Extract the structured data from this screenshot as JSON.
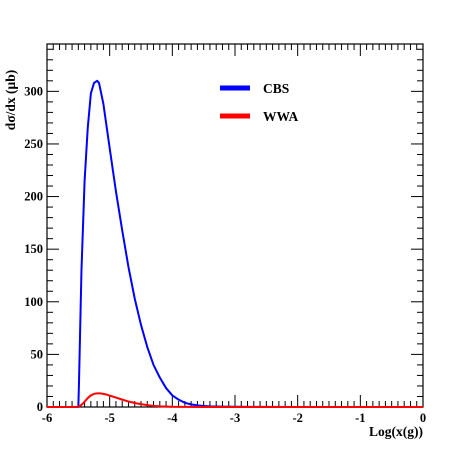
{
  "chart_data": {
    "type": "line",
    "xlabel": "Log(x(g))",
    "ylabel": "dσ/dx (μb)",
    "xlim": [
      -6,
      0
    ],
    "ylim": [
      0,
      345
    ],
    "x_ticks": [
      -6,
      -5,
      -4,
      -3,
      -2,
      -1,
      0
    ],
    "x_tick_labels": [
      "-6",
      "-5",
      "-4",
      "-3",
      "-2",
      "-1",
      "0"
    ],
    "y_ticks": [
      0,
      50,
      100,
      150,
      200,
      250,
      300
    ],
    "y_tick_labels": [
      "0",
      "50",
      "100",
      "150",
      "200",
      "250",
      "300"
    ],
    "legend": {
      "position": "top-right"
    },
    "series": [
      {
        "name": "CBS",
        "color": "#0000ff",
        "x": [
          -6.0,
          -5.8,
          -5.5,
          -5.49,
          -5.45,
          -5.4,
          -5.35,
          -5.3,
          -5.25,
          -5.2,
          -5.17,
          -5.1,
          -5.0,
          -4.9,
          -4.8,
          -4.7,
          -4.6,
          -4.5,
          -4.4,
          -4.3,
          -4.2,
          -4.1,
          -4.0,
          -3.9,
          -3.8,
          -3.7,
          -3.6,
          -3.5,
          -3.4,
          -3.2,
          -3.0,
          -2.5,
          -2.0,
          -1.0,
          0.0
        ],
        "y": [
          0,
          0,
          0,
          22,
          130,
          215,
          265,
          298,
          308,
          310,
          308,
          288,
          246,
          205,
          168,
          133,
          103,
          78,
          57,
          40,
          28,
          18,
          11,
          7,
          4,
          2.5,
          1.5,
          1,
          0.6,
          0.3,
          0.2,
          0.1,
          0,
          0,
          0
        ]
      },
      {
        "name": "WWA",
        "color": "#ff0000",
        "x": [
          -6.0,
          -5.6,
          -5.5,
          -5.45,
          -5.4,
          -5.35,
          -5.3,
          -5.25,
          -5.2,
          -5.15,
          -5.1,
          -5.05,
          -5.0,
          -4.9,
          -4.8,
          -4.7,
          -4.6,
          -4.5,
          -4.4,
          -4.3,
          -4.2,
          -4.0,
          -3.5,
          -3.0,
          -2.0,
          -1.0,
          0.0
        ],
        "y": [
          0,
          0,
          0.2,
          2,
          5,
          8.5,
          11,
          12.5,
          13,
          13,
          12.5,
          11.8,
          10.8,
          9,
          7,
          5.2,
          3.8,
          2.7,
          1.8,
          1.1,
          0.6,
          0.2,
          0,
          0,
          0,
          0,
          0
        ]
      }
    ]
  }
}
